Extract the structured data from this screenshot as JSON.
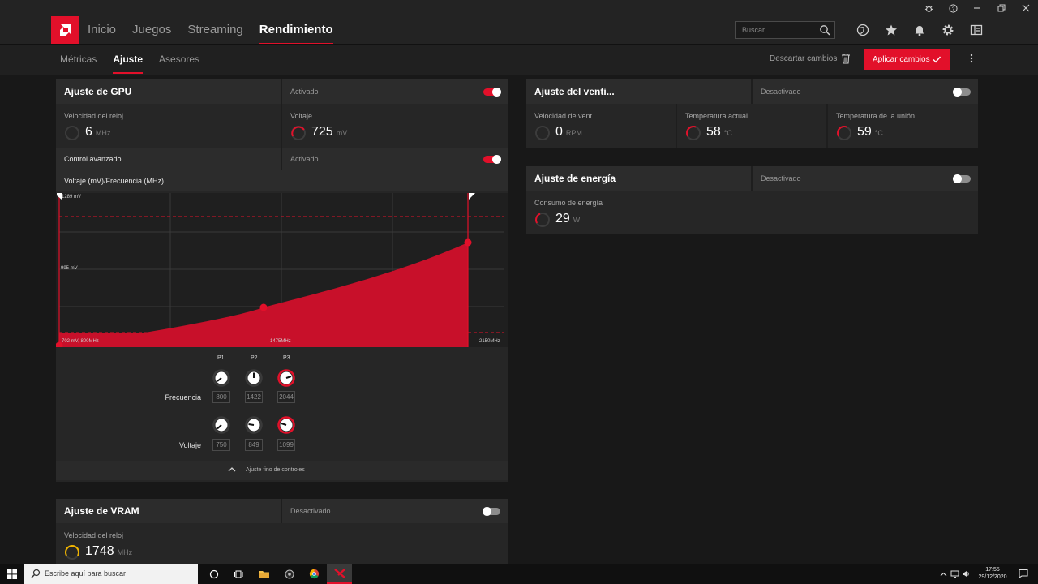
{
  "nav": {
    "tabs": [
      {
        "label": "Inicio"
      },
      {
        "label": "Juegos"
      },
      {
        "label": "Streaming"
      },
      {
        "label": "Rendimiento"
      }
    ],
    "search_placeholder": "Buscar"
  },
  "subnav": {
    "tabs": [
      {
        "label": "Métricas"
      },
      {
        "label": "Ajuste"
      },
      {
        "label": "Asesores"
      }
    ],
    "discard_label": "Descartar cambios",
    "apply_label": "Aplicar cambios"
  },
  "gpu": {
    "title": "Ajuste de GPU",
    "state": "Activado",
    "enabled": true,
    "clock": {
      "label": "Velocidad del reloj",
      "value": "6",
      "unit": "MHz"
    },
    "voltage": {
      "label": "Voltaje",
      "value": "725",
      "unit": "mV"
    },
    "advanced": {
      "label": "Control avanzado",
      "state": "Activado",
      "enabled": true
    },
    "curve_title": "Voltaje (mV)/Frecuencia (MHz)",
    "chart": {
      "top_label": "1289 mV",
      "mid_label": "995 mV",
      "bottom_left_label": "702 mV, 800MHz",
      "mid_x_label": "1475MHz",
      "right_x_label": "2150MHz"
    },
    "points": {
      "headers": [
        "P1",
        "P2",
        "P3"
      ],
      "frequency_label": "Frecuencia",
      "frequency": [
        "800",
        "1422",
        "2044"
      ],
      "voltage_label": "Voltaje",
      "voltage": [
        "750",
        "849",
        "1099"
      ]
    },
    "fine_label": "Ajuste fino de controles"
  },
  "vram": {
    "title": "Ajuste de VRAM",
    "state": "Desactivado",
    "enabled": false,
    "clock": {
      "label": "Velocidad del reloj",
      "value": "1748",
      "unit": "MHz"
    }
  },
  "fan": {
    "title": "Ajuste del venti...",
    "state": "Desactivado",
    "enabled": false,
    "speed": {
      "label": "Velocidad de vent.",
      "value": "0",
      "unit": "RPM"
    },
    "temp": {
      "label": "Temperatura actual",
      "value": "58",
      "unit": "°C"
    },
    "junction": {
      "label": "Temperatura de la unión",
      "value": "59",
      "unit": "°C"
    }
  },
  "power": {
    "title": "Ajuste de energía",
    "state": "Desactivado",
    "enabled": false,
    "consumption": {
      "label": "Consumo de energía",
      "value": "29",
      "unit": "W"
    }
  },
  "taskbar": {
    "search_placeholder": "Escribe aquí para buscar",
    "time": "17:55",
    "date": "29/12/2020"
  },
  "colors": {
    "accent": "#e2102a",
    "vram_ring": "#f0b400"
  }
}
